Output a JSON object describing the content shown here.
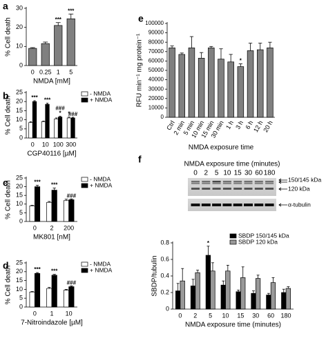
{
  "chart_data": [
    {
      "type": "bar",
      "letter": "a",
      "ylabel": "% Cell death",
      "xlabel": "NMDA [mM]",
      "categories": [
        "0",
        "0.25",
        "1",
        "5"
      ],
      "series": [
        {
          "color": "#808080",
          "values": [
            9,
            11.5,
            21,
            24.5
          ],
          "errors": [
            0.4,
            0.8,
            1.5,
            2.5
          ],
          "annotations": [
            null,
            null,
            "***",
            "***"
          ]
        }
      ],
      "ylim": [
        0,
        30
      ],
      "yticks": [
        0,
        10,
        20,
        30
      ]
    },
    {
      "type": "bar",
      "letter": "b",
      "ylabel": "% Cell death",
      "xlabel": "CGP40116 [µM]",
      "categories": [
        "0",
        "10",
        "100",
        "300"
      ],
      "legend": "right",
      "series": [
        {
          "name": "- NMDA",
          "color": "#ffffff",
          "values": [
            8.5,
            9,
            10.5,
            11
          ],
          "errors": [
            0.4,
            0.3,
            0.5,
            0.5
          ],
          "annotations": [
            null,
            null,
            null,
            "*"
          ]
        },
        {
          "name": "+ NMDA",
          "color": "#000000",
          "values": [
            20,
            18.5,
            11.5,
            11
          ],
          "errors": [
            0.5,
            0.6,
            0.5,
            0.4
          ],
          "annotations": [
            "***",
            "***",
            [
              "###",
              "*"
            ],
            "###"
          ]
        }
      ],
      "ylim": [
        0,
        25
      ],
      "yticks": [
        0,
        5,
        10,
        15,
        20,
        25
      ]
    },
    {
      "type": "bar",
      "letter": "c",
      "ylabel": "% Cell death",
      "xlabel": "MK801 [nM]",
      "categories": [
        "0",
        "2",
        "200"
      ],
      "legend": "right",
      "series": [
        {
          "name": "- NMDA",
          "color": "#ffffff",
          "values": [
            9,
            11,
            12
          ],
          "errors": [
            0.3,
            0.5,
            0.8
          ]
        },
        {
          "name": "+ NMDA",
          "color": "#000000",
          "values": [
            20,
            18,
            12.5
          ],
          "errors": [
            0.8,
            1.2,
            0.5
          ],
          "annotations": [
            "***",
            "***",
            "###"
          ]
        }
      ],
      "ylim": [
        0,
        25
      ],
      "yticks": [
        0,
        5,
        10,
        15,
        20,
        25
      ]
    },
    {
      "type": "bar",
      "letter": "d",
      "ylabel": "% Cell death",
      "xlabel": "7-Nitroindazole [µM]",
      "categories": [
        "0",
        "1",
        "10"
      ],
      "legend": "right",
      "series": [
        {
          "name": "- NMDA",
          "color": "#ffffff",
          "values": [
            8.5,
            10.5,
            9.5
          ],
          "errors": [
            0.3,
            0.6,
            0.5
          ]
        },
        {
          "name": "+ NMDA",
          "color": "#000000",
          "values": [
            19,
            18,
            11.5
          ],
          "errors": [
            0.5,
            0.5,
            0.5
          ],
          "annotations": [
            "***",
            "***",
            "###"
          ]
        }
      ],
      "ylim": [
        0,
        25
      ],
      "yticks": [
        0,
        5,
        10,
        15,
        20,
        25
      ]
    },
    {
      "type": "bar",
      "letter": "e",
      "ylabel": "RFU min⁻¹ mg protein⁻¹",
      "xlabel": "NMDA exposure time",
      "categories": [
        "Ctrl",
        "2 min",
        "5 min",
        "10 min",
        "15 min",
        "30 min",
        "1 h",
        "3 h",
        "6 h",
        "12 h",
        "20 h"
      ],
      "series": [
        {
          "color": "#808080",
          "values": [
            74000,
            67000,
            74000,
            63000,
            74000,
            62000,
            59000,
            54000,
            71000,
            72000,
            74000
          ],
          "errors": [
            2000,
            1500,
            12000,
            6000,
            1500,
            11000,
            8000,
            3000,
            8000,
            7000,
            6000
          ],
          "annotations": [
            null,
            null,
            null,
            null,
            null,
            null,
            null,
            "*",
            null,
            null,
            null
          ]
        }
      ],
      "ylim": [
        0,
        100000
      ],
      "yticks": [
        0,
        10000,
        20000,
        30000,
        40000,
        50000,
        60000,
        70000,
        80000,
        90000,
        100000
      ]
    },
    {
      "type": "bar",
      "letter": "f",
      "ylabel": "SBDP/tubulin",
      "xlabel": "NMDA exposure time (minutes)",
      "categories": [
        "0",
        "2",
        "5",
        "10",
        "15",
        "30",
        "60",
        "180"
      ],
      "legend": "top-right",
      "series": [
        {
          "name": "SBDP 150/145 kDa",
          "color": "#000000",
          "values": [
            0.22,
            0.28,
            0.65,
            0.29,
            0.21,
            0.19,
            0.17,
            0.2
          ],
          "errors": [
            0.09,
            0.08,
            0.11,
            0.05,
            0.02,
            0.03,
            0.02,
            0.04
          ],
          "annotations": [
            null,
            null,
            "*",
            null,
            null,
            null,
            null,
            null
          ]
        },
        {
          "name": "SBDP 120 kDa",
          "color": "#999999",
          "values": [
            0.34,
            0.44,
            0.46,
            0.46,
            0.38,
            0.37,
            0.32,
            0.25
          ],
          "errors": [
            0.15,
            0.03,
            0.1,
            0.07,
            0.13,
            0.04,
            0.06,
            0.02
          ]
        }
      ],
      "ylim": [
        0,
        0.8
      ],
      "yticks": [
        0,
        0.2,
        0.4,
        0.6,
        0.8
      ],
      "blot": {
        "title": "NMDA exposure time (minutes)",
        "lanes": [
          0,
          2,
          5,
          10,
          15,
          30,
          60,
          180
        ],
        "bands": [
          "150/145 kDa",
          "120 kDa",
          "α-tubulin"
        ]
      }
    }
  ]
}
